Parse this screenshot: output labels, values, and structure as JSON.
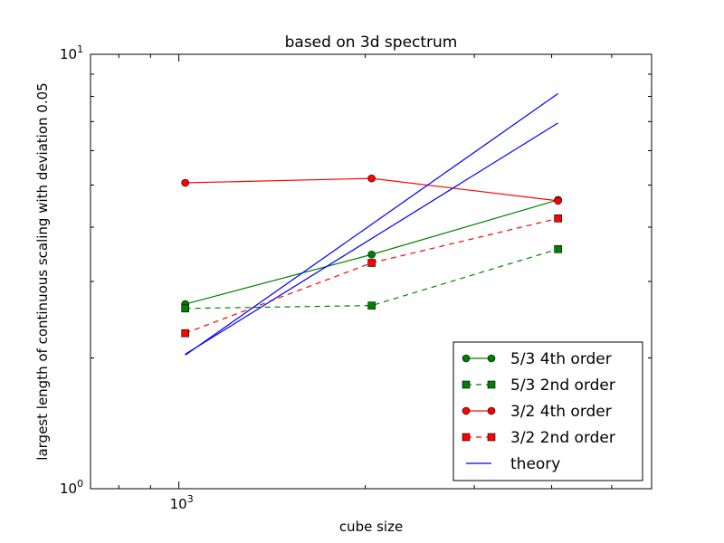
{
  "chart_data": {
    "type": "line",
    "title": "based on 3d spectrum",
    "xlabel": "cube size",
    "ylabel": "largest length of continuous scaling with deviation 0.05",
    "x_scale": "log",
    "y_scale": "log",
    "xlim": [
      720,
      5800
    ],
    "ylim": [
      1,
      10
    ],
    "x_major_ticks": [
      {
        "value": 1000,
        "base": "10",
        "exp": "3"
      }
    ],
    "x_minor_ticks": [
      800,
      900,
      2000,
      3000,
      4000,
      5000
    ],
    "y_major_ticks": [
      {
        "value": 1,
        "base": "10",
        "exp": "0"
      },
      {
        "value": 10,
        "base": "10",
        "exp": "1"
      }
    ],
    "y_minor_ticks": [
      2,
      3,
      4,
      5,
      6,
      7,
      8,
      9
    ],
    "grid": false,
    "legend_position": "bottom-right",
    "series": [
      {
        "name": "5/3 4th order",
        "color": "#008000",
        "dash": "solid",
        "marker": "circle",
        "show_in_legend": true,
        "x": [
          1024,
          2048,
          4096
        ],
        "y": [
          2.66,
          3.46,
          4.62
        ]
      },
      {
        "name": "5/3 2nd order",
        "color": "#008000",
        "dash": "dashed",
        "marker": "square",
        "show_in_legend": true,
        "x": [
          1024,
          2048,
          4096
        ],
        "y": [
          2.6,
          2.64,
          3.56
        ]
      },
      {
        "name": "3/2 4th order",
        "color": "#ff0000",
        "dash": "solid",
        "marker": "circle",
        "show_in_legend": true,
        "x": [
          1024,
          2048,
          4096
        ],
        "y": [
          5.06,
          5.18,
          4.6
        ]
      },
      {
        "name": "3/2 2nd order",
        "color": "#ff0000",
        "dash": "dashed",
        "marker": "square",
        "show_in_legend": true,
        "x": [
          1024,
          2048,
          4096
        ],
        "y": [
          2.28,
          3.31,
          4.19
        ]
      },
      {
        "name": "theory",
        "color": "#0000ff",
        "dash": "solid",
        "marker": "none",
        "show_in_legend": true,
        "x": [
          1024,
          4096
        ],
        "y": [
          2.03,
          8.12
        ]
      },
      {
        "name": "",
        "color": "#0000ff",
        "dash": "solid",
        "marker": "none",
        "show_in_legend": false,
        "x": [
          1024,
          4096
        ],
        "y": [
          2.04,
          6.95
        ]
      }
    ]
  }
}
